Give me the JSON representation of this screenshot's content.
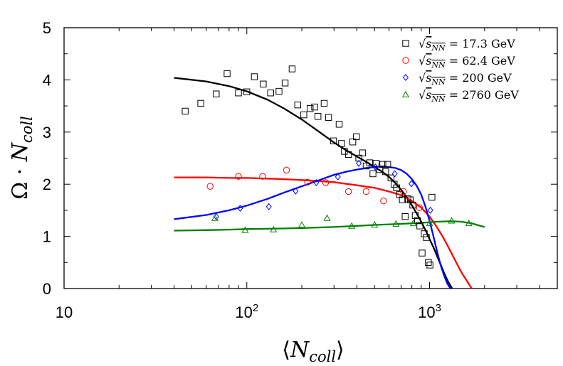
{
  "chart_data": {
    "type": "scatter",
    "title": "",
    "xlabel": "⟨N_coll⟩",
    "ylabel": "Ω · N_coll",
    "x_scale": "log",
    "xlim": [
      10,
      5000
    ],
    "ylim": [
      0,
      5
    ],
    "x_ticks": [
      {
        "value": 10,
        "label": "10",
        "sup": ""
      },
      {
        "value": 100,
        "label": "10",
        "sup": "2"
      },
      {
        "value": 1000,
        "label": "10",
        "sup": "3"
      }
    ],
    "y_ticks": [
      0,
      1,
      2,
      3,
      4,
      5
    ],
    "legend_position": "top-right",
    "series": [
      {
        "name": "√s_NN = 17.3 GeV",
        "energy": "17.3",
        "marker": "square",
        "color": "#000000",
        "points": [
          [
            46,
            3.4
          ],
          [
            56,
            3.55
          ],
          [
            68,
            3.73
          ],
          [
            78,
            4.12
          ],
          [
            90,
            3.75
          ],
          [
            100,
            3.77
          ],
          [
            110,
            4.06
          ],
          [
            123,
            3.92
          ],
          [
            135,
            3.75
          ],
          [
            150,
            3.78
          ],
          [
            162,
            3.94
          ],
          [
            177,
            4.21
          ],
          [
            190,
            3.52
          ],
          [
            205,
            3.33
          ],
          [
            222,
            3.45
          ],
          [
            235,
            3.48
          ],
          [
            245,
            3.3
          ],
          [
            265,
            3.55
          ],
          [
            280,
            3.28
          ],
          [
            298,
            2.83
          ],
          [
            320,
            3.15
          ],
          [
            330,
            2.78
          ],
          [
            342,
            2.63
          ],
          [
            360,
            2.57
          ],
          [
            380,
            2.81
          ],
          [
            398,
            2.91
          ],
          [
            410,
            2.5
          ],
          [
            430,
            2.6
          ],
          [
            450,
            2.35
          ],
          [
            470,
            2.41
          ],
          [
            490,
            2.2
          ],
          [
            510,
            2.4
          ],
          [
            535,
            2.28
          ],
          [
            555,
            2.38
          ],
          [
            575,
            2.24
          ],
          [
            590,
            2.38
          ],
          [
            615,
            2.12
          ],
          [
            640,
            2.0
          ],
          [
            660,
            1.93
          ],
          [
            685,
            1.8
          ],
          [
            710,
            1.7
          ],
          [
            735,
            1.38
          ],
          [
            760,
            1.72
          ],
          [
            785,
            1.7
          ],
          [
            810,
            1.6
          ],
          [
            835,
            1.4
          ],
          [
            860,
            1.3
          ],
          [
            885,
            1.2
          ],
          [
            910,
            0.68
          ],
          [
            935,
            1.05
          ],
          [
            960,
            0.98
          ],
          [
            985,
            0.5
          ],
          [
            1005,
            0.45
          ],
          [
            1030,
            1.75
          ]
        ]
      },
      {
        "name": "√s_NN = 62.4 GeV",
        "energy": "62.4",
        "marker": "circle",
        "color": "#ff0000",
        "points": [
          [
            63,
            1.96
          ],
          [
            90,
            2.15
          ],
          [
            122,
            2.15
          ],
          [
            165,
            2.27
          ],
          [
            215,
            2.04
          ],
          [
            270,
            2.03
          ],
          [
            360,
            1.86
          ],
          [
            450,
            1.86
          ],
          [
            560,
            1.68
          ],
          [
            720,
            1.86
          ],
          [
            880,
            1.55
          ]
        ]
      },
      {
        "name": "√s_NN = 200 GeV",
        "energy": "200",
        "marker": "diamond",
        "color": "#0000ff",
        "points": [
          [
            68,
            1.38
          ],
          [
            92,
            1.54
          ],
          [
            132,
            1.57
          ],
          [
            185,
            1.87
          ],
          [
            240,
            2.03
          ],
          [
            315,
            2.14
          ],
          [
            410,
            2.4
          ],
          [
            505,
            2.33
          ],
          [
            645,
            2.2
          ],
          [
            795,
            2.01
          ],
          [
            1010,
            1.5
          ]
        ]
      },
      {
        "name": "√s_NN = 2760 GeV",
        "energy": "2760",
        "marker": "triangle",
        "color": "#008000",
        "points": [
          [
            67,
            1.35
          ],
          [
            98,
            1.12
          ],
          [
            140,
            1.13
          ],
          [
            200,
            1.22
          ],
          [
            275,
            1.35
          ],
          [
            375,
            1.2
          ],
          [
            500,
            1.22
          ],
          [
            655,
            1.24
          ],
          [
            815,
            1.25
          ],
          [
            1000,
            1.25
          ],
          [
            1320,
            1.3
          ],
          [
            1640,
            1.25
          ]
        ]
      }
    ],
    "fits": [
      {
        "color": "#000000",
        "points": [
          [
            40,
            4.04
          ],
          [
            60,
            3.97
          ],
          [
            80,
            3.88
          ],
          [
            100,
            3.78
          ],
          [
            130,
            3.62
          ],
          [
            160,
            3.45
          ],
          [
            200,
            3.24
          ],
          [
            250,
            3.0
          ],
          [
            300,
            2.8
          ],
          [
            350,
            2.65
          ],
          [
            400,
            2.53
          ],
          [
            450,
            2.43
          ],
          [
            500,
            2.33
          ],
          [
            550,
            2.24
          ],
          [
            600,
            2.14
          ],
          [
            650,
            2.02
          ],
          [
            700,
            1.89
          ],
          [
            750,
            1.75
          ],
          [
            800,
            1.6
          ],
          [
            850,
            1.44
          ],
          [
            900,
            1.28
          ],
          [
            950,
            1.12
          ],
          [
            1000,
            0.95
          ],
          [
            1050,
            0.79
          ],
          [
            1100,
            0.62
          ],
          [
            1150,
            0.46
          ],
          [
            1200,
            0.3
          ],
          [
            1260,
            0.14
          ],
          [
            1330,
            0.0
          ]
        ]
      },
      {
        "color": "#ff0000",
        "points": [
          [
            40,
            2.13
          ],
          [
            60,
            2.13
          ],
          [
            80,
            2.12
          ],
          [
            100,
            2.12
          ],
          [
            150,
            2.1
          ],
          [
            200,
            2.08
          ],
          [
            250,
            2.06
          ],
          [
            300,
            2.04
          ],
          [
            400,
            1.98
          ],
          [
            500,
            1.93
          ],
          [
            600,
            1.86
          ],
          [
            700,
            1.79
          ],
          [
            800,
            1.68
          ],
          [
            900,
            1.55
          ],
          [
            1000,
            1.38
          ],
          [
            1100,
            1.17
          ],
          [
            1200,
            0.95
          ],
          [
            1300,
            0.72
          ],
          [
            1400,
            0.5
          ],
          [
            1500,
            0.3
          ],
          [
            1600,
            0.15
          ],
          [
            1700,
            0.0
          ]
        ]
      },
      {
        "color": "#0000ff",
        "points": [
          [
            40,
            1.33
          ],
          [
            60,
            1.41
          ],
          [
            80,
            1.5
          ],
          [
            100,
            1.59
          ],
          [
            130,
            1.72
          ],
          [
            160,
            1.84
          ],
          [
            200,
            1.96
          ],
          [
            250,
            2.08
          ],
          [
            300,
            2.18
          ],
          [
            350,
            2.24
          ],
          [
            400,
            2.28
          ],
          [
            450,
            2.31
          ],
          [
            500,
            2.33
          ],
          [
            550,
            2.34
          ],
          [
            600,
            2.33
          ],
          [
            650,
            2.31
          ],
          [
            700,
            2.27
          ],
          [
            750,
            2.2
          ],
          [
            800,
            2.1
          ],
          [
            850,
            1.97
          ],
          [
            900,
            1.8
          ],
          [
            950,
            1.57
          ],
          [
            1000,
            1.3
          ],
          [
            1050,
            1.0
          ],
          [
            1100,
            0.7
          ],
          [
            1150,
            0.45
          ],
          [
            1200,
            0.25
          ],
          [
            1250,
            0.1
          ],
          [
            1300,
            0.0
          ]
        ]
      },
      {
        "color": "#008000",
        "points": [
          [
            40,
            1.11
          ],
          [
            60,
            1.12
          ],
          [
            80,
            1.13
          ],
          [
            100,
            1.14
          ],
          [
            150,
            1.15
          ],
          [
            200,
            1.16
          ],
          [
            300,
            1.18
          ],
          [
            400,
            1.2
          ],
          [
            500,
            1.22
          ],
          [
            700,
            1.24
          ],
          [
            900,
            1.26
          ],
          [
            1100,
            1.28
          ],
          [
            1300,
            1.29
          ],
          [
            1500,
            1.28
          ],
          [
            1700,
            1.25
          ],
          [
            1900,
            1.2
          ],
          [
            2000,
            1.18
          ]
        ]
      }
    ]
  }
}
